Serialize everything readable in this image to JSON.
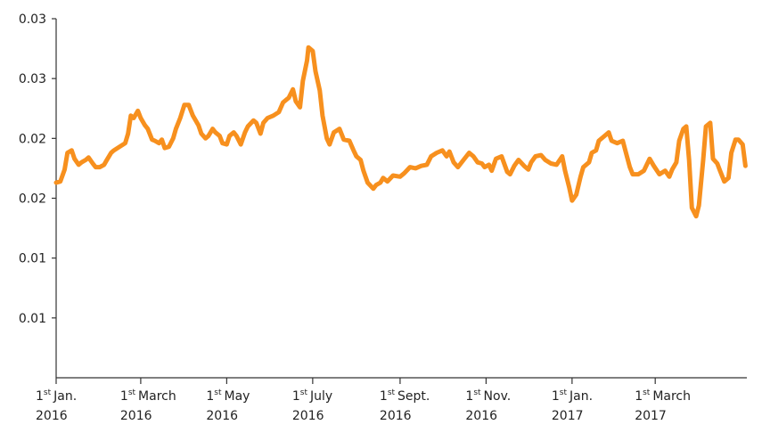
{
  "chart_data": {
    "type": "line",
    "x": [
      "2016-01-01",
      "2016-01-04",
      "2016-01-07",
      "2016-01-09",
      "2016-01-12",
      "2016-01-14",
      "2016-01-17",
      "2016-01-19",
      "2016-01-22",
      "2016-01-24",
      "2016-01-27",
      "2016-01-29",
      "2016-02-01",
      "2016-02-04",
      "2016-02-06",
      "2016-02-09",
      "2016-02-11",
      "2016-02-15",
      "2016-02-19",
      "2016-02-21",
      "2016-02-23",
      "2016-02-25",
      "2016-02-28",
      "2016-03-01",
      "2016-03-04",
      "2016-03-06",
      "2016-03-09",
      "2016-03-11",
      "2016-03-14",
      "2016-03-16",
      "2016-03-18",
      "2016-03-21",
      "2016-03-24",
      "2016-03-26",
      "2016-03-29",
      "2016-04-01",
      "2016-04-04",
      "2016-04-07",
      "2016-04-11",
      "2016-04-13",
      "2016-04-16",
      "2016-04-18",
      "2016-04-21",
      "2016-04-23",
      "2016-04-26",
      "2016-04-28",
      "2016-05-01",
      "2016-05-03",
      "2016-05-06",
      "2016-05-08",
      "2016-05-11",
      "2016-05-14",
      "2016-05-16",
      "2016-05-20",
      "2016-05-22",
      "2016-05-25",
      "2016-05-27",
      "2016-05-30",
      "2016-06-03",
      "2016-06-07",
      "2016-06-10",
      "2016-06-14",
      "2016-06-17",
      "2016-06-19",
      "2016-06-22",
      "2016-06-24",
      "2016-06-27",
      "2016-06-28",
      "2016-07-01",
      "2016-07-03",
      "2016-07-06",
      "2016-07-08",
      "2016-07-11",
      "2016-07-13",
      "2016-07-16",
      "2016-07-20",
      "2016-07-23",
      "2016-07-27",
      "2016-07-30",
      "2016-08-01",
      "2016-08-04",
      "2016-08-06",
      "2016-08-09",
      "2016-08-13",
      "2016-08-15",
      "2016-08-18",
      "2016-08-20",
      "2016-08-23",
      "2016-08-27",
      "2016-09-01",
      "2016-09-04",
      "2016-09-08",
      "2016-09-12",
      "2016-09-16",
      "2016-09-20",
      "2016-09-23",
      "2016-09-27",
      "2016-10-01",
      "2016-10-04",
      "2016-10-06",
      "2016-10-09",
      "2016-10-12",
      "2016-10-16",
      "2016-10-20",
      "2016-10-23",
      "2016-10-26",
      "2016-10-29",
      "2016-10-31",
      "2016-11-03",
      "2016-11-05",
      "2016-11-08",
      "2016-11-12",
      "2016-11-16",
      "2016-11-18",
      "2016-11-21",
      "2016-11-24",
      "2016-11-28",
      "2016-12-01",
      "2016-12-03",
      "2016-12-06",
      "2016-12-10",
      "2016-12-13",
      "2016-12-17",
      "2016-12-21",
      "2016-12-25",
      "2016-12-27",
      "2016-12-30",
      "2017-01-01",
      "2017-01-04",
      "2017-01-07",
      "2017-01-09",
      "2017-01-13",
      "2017-01-15",
      "2017-01-18",
      "2017-01-20",
      "2017-01-24",
      "2017-01-27",
      "2017-01-29",
      "2017-02-02",
      "2017-02-06",
      "2017-02-08",
      "2017-02-11",
      "2017-02-13",
      "2017-02-17",
      "2017-02-21",
      "2017-02-25",
      "2017-02-28",
      "2017-03-04",
      "2017-03-08",
      "2017-03-11",
      "2017-03-13",
      "2017-03-16",
      "2017-03-18",
      "2017-03-21",
      "2017-03-23",
      "2017-03-25",
      "2017-03-27",
      "2017-03-30",
      "2017-04-01",
      "2017-04-04",
      "2017-04-06",
      "2017-04-09",
      "2017-04-11",
      "2017-04-14",
      "2017-04-16",
      "2017-04-19",
      "2017-04-22",
      "2017-04-24",
      "2017-04-27",
      "2017-04-29",
      "2017-05-02",
      "2017-05-04"
    ],
    "series": [
      {
        "color": "#f7901e",
        "values": [
          0.0163,
          0.0164,
          0.0174,
          0.0188,
          0.019,
          0.0183,
          0.0178,
          0.018,
          0.0182,
          0.0184,
          0.0179,
          0.0176,
          0.0176,
          0.0178,
          0.0182,
          0.0188,
          0.019,
          0.0193,
          0.0196,
          0.0204,
          0.0219,
          0.0217,
          0.0223,
          0.0217,
          0.0211,
          0.0208,
          0.0199,
          0.0198,
          0.0196,
          0.0199,
          0.0192,
          0.0193,
          0.02,
          0.0208,
          0.0217,
          0.0228,
          0.0228,
          0.0219,
          0.0211,
          0.0204,
          0.02,
          0.0202,
          0.0208,
          0.0205,
          0.0202,
          0.0196,
          0.0195,
          0.0202,
          0.0205,
          0.0202,
          0.0195,
          0.0205,
          0.021,
          0.0215,
          0.0213,
          0.0204,
          0.0213,
          0.0217,
          0.0219,
          0.0222,
          0.023,
          0.0234,
          0.0241,
          0.0231,
          0.0226,
          0.0248,
          0.0265,
          0.0276,
          0.0273,
          0.0256,
          0.024,
          0.0219,
          0.02,
          0.0195,
          0.0205,
          0.0208,
          0.0199,
          0.0198,
          0.019,
          0.0185,
          0.0182,
          0.0173,
          0.0163,
          0.0158,
          0.0161,
          0.0163,
          0.0167,
          0.0164,
          0.0169,
          0.0168,
          0.0171,
          0.0176,
          0.0175,
          0.0177,
          0.0178,
          0.0185,
          0.0188,
          0.019,
          0.0185,
          0.0189,
          0.018,
          0.0176,
          0.0182,
          0.0188,
          0.0185,
          0.018,
          0.0179,
          0.0176,
          0.0178,
          0.0173,
          0.0183,
          0.0185,
          0.0172,
          0.017,
          0.0177,
          0.0182,
          0.0177,
          0.0174,
          0.018,
          0.0185,
          0.0186,
          0.0182,
          0.0179,
          0.0178,
          0.0185,
          0.0173,
          0.0159,
          0.0148,
          0.0153,
          0.0168,
          0.0176,
          0.018,
          0.0188,
          0.019,
          0.0198,
          0.0202,
          0.0205,
          0.0198,
          0.0196,
          0.0198,
          0.0189,
          0.0176,
          0.017,
          0.017,
          0.0173,
          0.0183,
          0.0177,
          0.017,
          0.0173,
          0.0168,
          0.0174,
          0.018,
          0.0198,
          0.0208,
          0.021,
          0.0182,
          0.0142,
          0.0135,
          0.0144,
          0.0182,
          0.021,
          0.0213,
          0.0183,
          0.0179,
          0.0173,
          0.0164,
          0.0167,
          0.0188,
          0.0199,
          0.0199,
          0.0195,
          0.0177
        ]
      }
    ],
    "xlim": [
      "2016-01-01",
      "2017-05-05"
    ],
    "xticks": [
      {
        "value": "2016-01-01",
        "label": {
          "day": "1",
          "ordinal": "st",
          "month": "Jan.",
          "year": "2016"
        }
      },
      {
        "value": "2016-03-01",
        "label": {
          "day": "1",
          "ordinal": "st",
          "month": "March",
          "year": "2016"
        }
      },
      {
        "value": "2016-05-01",
        "label": {
          "day": "1",
          "ordinal": "st",
          "month": "May",
          "year": "2016"
        }
      },
      {
        "value": "2016-07-01",
        "label": {
          "day": "1",
          "ordinal": "st",
          "month": "July",
          "year": "2016"
        }
      },
      {
        "value": "2016-09-01",
        "label": {
          "day": "1",
          "ordinal": "st",
          "month": "Sept.",
          "year": "2016"
        }
      },
      {
        "value": "2016-11-01",
        "label": {
          "day": "1",
          "ordinal": "st",
          "month": "Nov.",
          "year": "2016"
        }
      },
      {
        "value": "2017-01-01",
        "label": {
          "day": "1",
          "ordinal": "st",
          "month": "Jan.",
          "year": "2017"
        }
      },
      {
        "value": "2017-03-01",
        "label": {
          "day": "1",
          "ordinal": "st",
          "month": "March",
          "year": "2017"
        }
      }
    ],
    "ylim": [
      0,
      0.03
    ],
    "yticks": [
      {
        "value": 0.005,
        "label": "0.01"
      },
      {
        "value": 0.01,
        "label": "0.01"
      },
      {
        "value": 0.015,
        "label": "0.02"
      },
      {
        "value": 0.02,
        "label": "0.02"
      },
      {
        "value": 0.025,
        "label": "0.03"
      },
      {
        "value": 0.03,
        "label": "0.03"
      }
    ]
  }
}
